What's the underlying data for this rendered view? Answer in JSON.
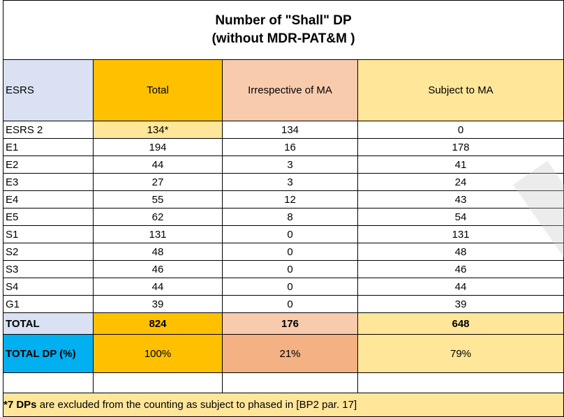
{
  "title": {
    "line1": "Number of \"Shall\" DP",
    "line2": "(without MDR-PAT&M )"
  },
  "headers": {
    "esrs": "ESRS",
    "total": "Total",
    "irrespective": "Irrespective of MA",
    "subject": "Subject to MA"
  },
  "rows": [
    {
      "label": "ESRS 2",
      "total": "134*",
      "irrespective": "134",
      "subject": "0"
    },
    {
      "label": "E1",
      "total": "194",
      "irrespective": "16",
      "subject": "178"
    },
    {
      "label": "E2",
      "total": "44",
      "irrespective": "3",
      "subject": "41"
    },
    {
      "label": "E3",
      "total": "27",
      "irrespective": "3",
      "subject": "24"
    },
    {
      "label": "E4",
      "total": "55",
      "irrespective": "12",
      "subject": "43"
    },
    {
      "label": "E5",
      "total": "62",
      "irrespective": "8",
      "subject": "54"
    },
    {
      "label": "S1",
      "total": "131",
      "irrespective": "0",
      "subject": "131"
    },
    {
      "label": "S2",
      "total": "48",
      "irrespective": "0",
      "subject": "48"
    },
    {
      "label": "S3",
      "total": "46",
      "irrespective": "0",
      "subject": "46"
    },
    {
      "label": "S4",
      "total": "44",
      "irrespective": "0",
      "subject": "44"
    },
    {
      "label": "G1",
      "total": "39",
      "irrespective": "0",
      "subject": "39"
    }
  ],
  "total_row": {
    "label": "TOTAL",
    "total": "824",
    "irrespective": "176",
    "subject": "648"
  },
  "pct_row": {
    "label": "TOTAL DP (%)",
    "total": "100%",
    "irrespective": "21%",
    "subject": "79%"
  },
  "note": {
    "bold": "*7 DPs",
    "rest": " are excluded from the counting as subject to phased in [BP2 par. 17]"
  },
  "colors": {
    "esrs_header": "#d9e1f2",
    "total": "#ffc000",
    "irrespective": "#f8cbad",
    "irrespective_pct": "#f4b183",
    "subject": "#ffe699",
    "pct_label": "#00b0f0"
  }
}
